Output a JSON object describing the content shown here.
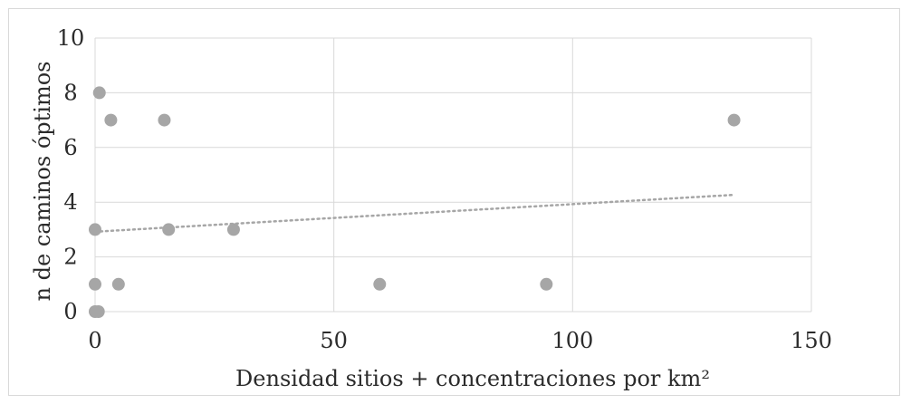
{
  "chart_data": {
    "type": "scatter",
    "title": "",
    "xlabel": "Densidad sitios + concentraciones por km²",
    "ylabel": "n de caminos óptimos",
    "xlim": [
      0,
      150
    ],
    "ylim": [
      0,
      10
    ],
    "x_ticks": [
      "0",
      "50",
      "100",
      "150"
    ],
    "y_ticks": [
      "0",
      "2",
      "4",
      "6",
      "8",
      "10"
    ],
    "grid": true,
    "legend": "none",
    "marker_color": "#a6a6a6",
    "trendline_color": "#a6a6a6",
    "points": [
      {
        "x": 0,
        "y": 3
      },
      {
        "x": 0,
        "y": 1
      },
      {
        "x": 0,
        "y": 0
      },
      {
        "x": 0.7,
        "y": 0
      },
      {
        "x": 0.9,
        "y": 8
      },
      {
        "x": 3.3,
        "y": 7
      },
      {
        "x": 4.9,
        "y": 1
      },
      {
        "x": 14.5,
        "y": 7
      },
      {
        "x": 15.4,
        "y": 3
      },
      {
        "x": 29,
        "y": 3
      },
      {
        "x": 59.6,
        "y": 1
      },
      {
        "x": 94.5,
        "y": 1
      },
      {
        "x": 133.8,
        "y": 7
      }
    ],
    "trendline": {
      "type": "linear",
      "x": [
        0,
        134
      ],
      "y": [
        2.92,
        4.27
      ]
    }
  }
}
